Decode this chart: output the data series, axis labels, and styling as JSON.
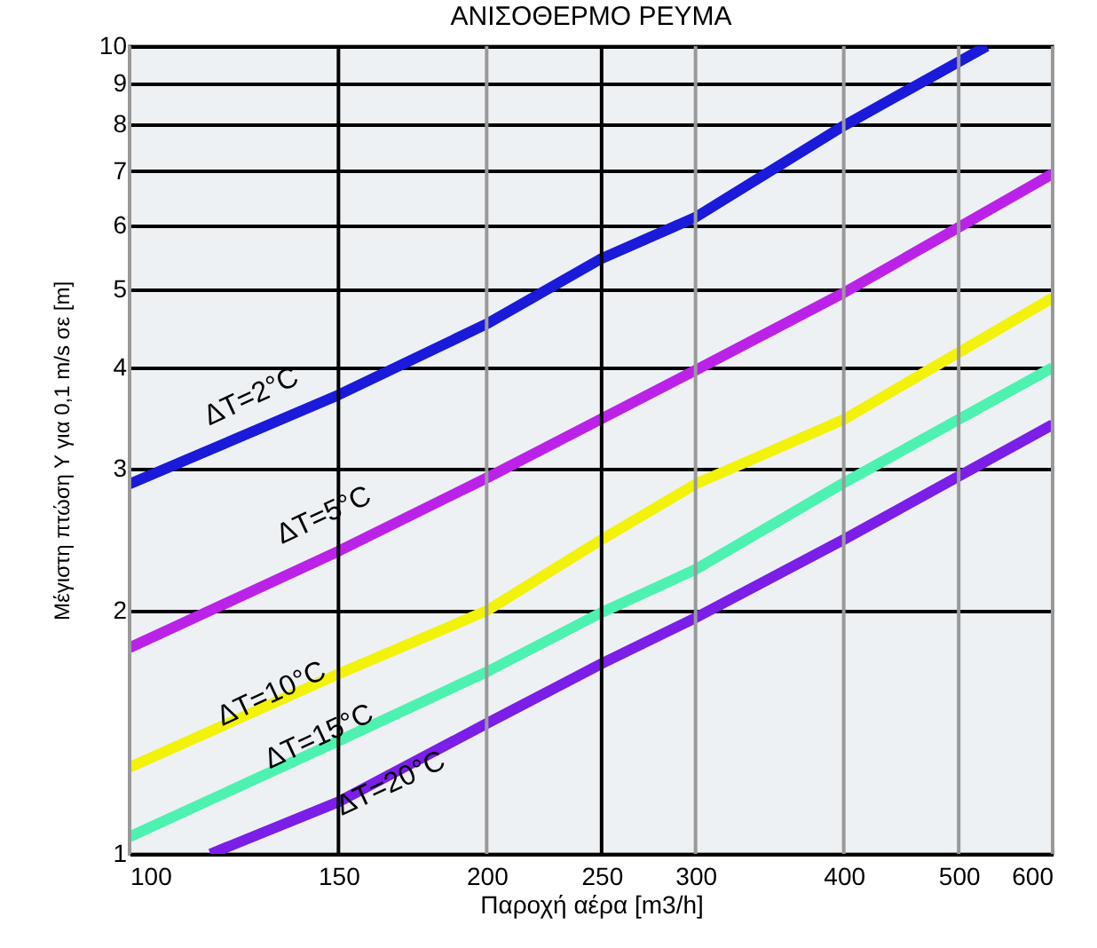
{
  "chart_data": {
    "type": "line",
    "title": "ΑΝΙΣΟΘΕΡΜΟ ΡΕΥΜΑ",
    "xlabel": "Παροχή αέρα [m3/h]",
    "ylabel": "Μέγιστη πτώση Υ για 0,1 m/s σε [m]",
    "log": "xy",
    "xlim": [
      100,
      600
    ],
    "ylim": [
      1,
      10
    ],
    "xticks": [
      100,
      150,
      200,
      250,
      300,
      400,
      500,
      600
    ],
    "yticks": [
      1,
      2,
      3,
      4,
      5,
      6,
      7,
      8,
      9,
      10
    ],
    "grid": true,
    "line_style": "solid",
    "marker": "none",
    "series": [
      {
        "name": "ΔT=2°C",
        "color": "#1a1adb",
        "x": [
          100,
          150,
          200,
          250,
          300,
          400,
          528
        ],
        "values": [
          2.87,
          3.7,
          4.53,
          5.46,
          6.14,
          7.97,
          10
        ]
      },
      {
        "name": "ΔT=5°C",
        "color": "#bb22e8",
        "x": [
          100,
          150,
          200,
          300,
          400,
          600
        ],
        "values": [
          1.8,
          2.37,
          2.92,
          3.97,
          4.95,
          6.95
        ]
      },
      {
        "name": "ΔT=10°C",
        "color": "#f2f20a",
        "x": [
          100,
          150,
          200,
          250,
          300,
          400,
          600
        ],
        "values": [
          1.28,
          1.67,
          2.0,
          2.45,
          2.87,
          3.45,
          4.88
        ]
      },
      {
        "name": "ΔT=15°C",
        "color": "#4df2b0",
        "x": [
          100,
          150,
          200,
          250,
          300,
          400,
          600
        ],
        "values": [
          1.05,
          1.38,
          1.68,
          1.99,
          2.25,
          2.88,
          4.0
        ]
      },
      {
        "name": "ΔT=20°C",
        "color": "#7a1ee8",
        "x": [
          117,
          150,
          200,
          250,
          300,
          400,
          600
        ],
        "values": [
          1.0,
          1.16,
          1.45,
          1.72,
          1.96,
          2.45,
          3.4
        ]
      }
    ]
  }
}
